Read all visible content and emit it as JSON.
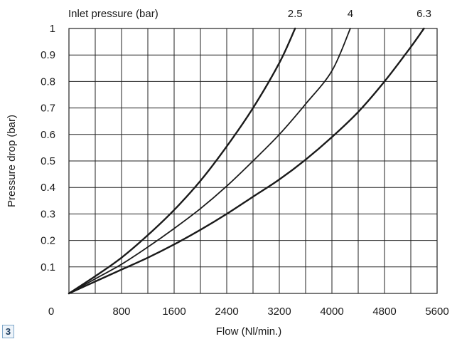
{
  "figure_tag": "3",
  "chart_data": {
    "type": "line",
    "title": "",
    "xlabel": "Flow (Nl/min.)",
    "ylabel": "Pressure drop (bar)",
    "series_label_title": "Inlet pressure (bar)",
    "xlim": [
      0,
      5600
    ],
    "ylim": [
      0,
      1
    ],
    "x_ticks": [
      0,
      800,
      1600,
      2400,
      3200,
      4000,
      4800,
      5600
    ],
    "y_ticks": [
      0.1,
      0.2,
      0.3,
      0.4,
      0.5,
      0.6,
      0.7,
      0.8,
      0.9,
      1
    ],
    "x_tick_labels": [
      "0",
      "800",
      "1600",
      "2400",
      "3200",
      "4000",
      "4800",
      "5600"
    ],
    "y_tick_labels": [
      "0.1",
      "0.2",
      "0.3",
      "0.4",
      "0.5",
      "0.6",
      "0.7",
      "0.8",
      "0.9",
      "1"
    ],
    "grid": true,
    "series": [
      {
        "name": "2.5",
        "x": [
          0,
          400,
          800,
          1200,
          1600,
          2000,
          2400,
          2800,
          3200,
          3440
        ],
        "y": [
          0,
          0.065,
          0.135,
          0.22,
          0.315,
          0.425,
          0.555,
          0.7,
          0.87,
          1.0
        ]
      },
      {
        "name": "4",
        "x": [
          0,
          400,
          800,
          1200,
          1600,
          2000,
          2400,
          2800,
          3200,
          3600,
          4000,
          4280
        ],
        "y": [
          0,
          0.055,
          0.11,
          0.175,
          0.245,
          0.32,
          0.405,
          0.5,
          0.6,
          0.715,
          0.84,
          1.0
        ]
      },
      {
        "name": "6.3",
        "x": [
          0,
          400,
          800,
          1200,
          1600,
          2000,
          2400,
          2800,
          3200,
          3600,
          4000,
          4400,
          4800,
          5200,
          5400
        ],
        "y": [
          0,
          0.045,
          0.09,
          0.135,
          0.185,
          0.24,
          0.3,
          0.365,
          0.43,
          0.505,
          0.59,
          0.685,
          0.8,
          0.93,
          1.0
        ]
      }
    ]
  }
}
